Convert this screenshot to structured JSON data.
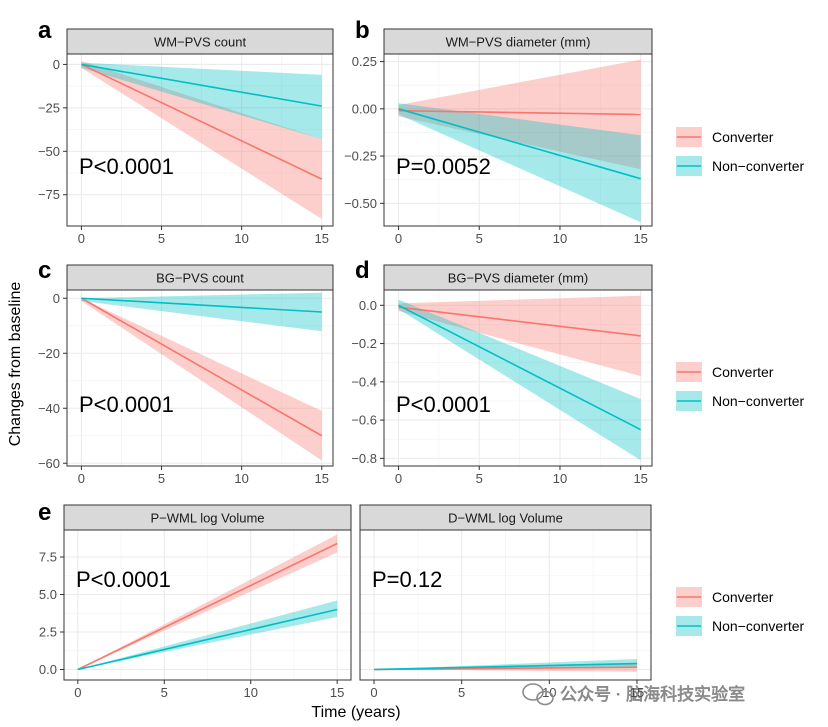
{
  "colors": {
    "converter": "#F8766D",
    "non_converter": "#00BFC4"
  },
  "xlabel": "Time (years)",
  "ylabel": "Changes from baseline",
  "legend": {
    "entries": [
      "Converter",
      "Non−converter"
    ],
    "placement": "right"
  },
  "watermark": "公众号 · 脑海科技实验室",
  "chart_data": [
    {
      "letter": "a",
      "type": "line",
      "title": "WM−PVS count",
      "p_value": "P<0.0001",
      "xlim": [
        -0.9,
        15.7
      ],
      "ylim": [
        -93,
        6
      ],
      "xticks": [
        0,
        5,
        10,
        15
      ],
      "xtick_labels": [
        "0",
        "5",
        "10",
        "15"
      ],
      "yticks": [
        0,
        -25,
        -50,
        -75
      ],
      "ytick_labels": [
        "0",
        "−25",
        "−50",
        "−75"
      ],
      "series": [
        {
          "name": "Converter",
          "x": [
            0,
            15
          ],
          "y": [
            0,
            -66
          ],
          "lower": [
            -2,
            -89
          ],
          "upper": [
            2,
            -43
          ]
        },
        {
          "name": "Non−converter",
          "x": [
            0,
            15
          ],
          "y": [
            0,
            -24
          ],
          "lower": [
            -2,
            -43
          ],
          "upper": [
            1,
            -6
          ]
        }
      ]
    },
    {
      "letter": "b",
      "type": "line",
      "title": "WM−PVS diameter (mm)",
      "p_value": "P=0.0052",
      "xlim": [
        -0.9,
        15.7
      ],
      "ylim": [
        -0.62,
        0.29
      ],
      "xticks": [
        0,
        5,
        10,
        15
      ],
      "xtick_labels": [
        "0",
        "5",
        "10",
        "15"
      ],
      "yticks": [
        0.25,
        0,
        -0.25,
        -0.5
      ],
      "ytick_labels": [
        "0.25",
        "0.00",
        "−0.25",
        "−0.50"
      ],
      "series": [
        {
          "name": "Converter",
          "x": [
            0,
            15
          ],
          "y": [
            -0.01,
            -0.03
          ],
          "lower": [
            -0.04,
            -0.32
          ],
          "upper": [
            0.02,
            0.26
          ]
        },
        {
          "name": "Non−converter",
          "x": [
            0,
            15
          ],
          "y": [
            0,
            -0.37
          ],
          "lower": [
            -0.03,
            -0.6
          ],
          "upper": [
            0.03,
            -0.14
          ]
        }
      ]
    },
    {
      "letter": "c",
      "type": "line",
      "title": "BG−PVS count",
      "p_value": "P<0.0001",
      "xlim": [
        -0.9,
        15.7
      ],
      "ylim": [
        -61,
        3
      ],
      "xticks": [
        0,
        5,
        10,
        15
      ],
      "xtick_labels": [
        "0",
        "5",
        "10",
        "15"
      ],
      "yticks": [
        0,
        -20,
        -40,
        -60
      ],
      "ytick_labels": [
        "0",
        "−20",
        "−40",
        "−60"
      ],
      "series": [
        {
          "name": "Converter",
          "x": [
            0,
            15
          ],
          "y": [
            0,
            -50
          ],
          "lower": [
            -1,
            -59
          ],
          "upper": [
            0,
            -41
          ]
        },
        {
          "name": "Non−converter",
          "x": [
            0,
            15
          ],
          "y": [
            0,
            -5
          ],
          "lower": [
            -1,
            -12
          ],
          "upper": [
            0,
            2
          ]
        }
      ]
    },
    {
      "letter": "d",
      "type": "line",
      "title": "BG−PVS diameter (mm)",
      "p_value": "P<0.0001",
      "xlim": [
        -0.9,
        15.7
      ],
      "ylim": [
        -0.84,
        0.08
      ],
      "xticks": [
        0,
        5,
        10,
        15
      ],
      "xtick_labels": [
        "0",
        "5",
        "10",
        "15"
      ],
      "yticks": [
        0,
        -0.2,
        -0.4,
        -0.6,
        -0.8
      ],
      "ytick_labels": [
        "0.0",
        "−0.2",
        "−0.4",
        "−0.6",
        "−0.8"
      ],
      "series": [
        {
          "name": "Converter",
          "x": [
            0,
            15
          ],
          "y": [
            -0.01,
            -0.16
          ],
          "lower": [
            -0.03,
            -0.37
          ],
          "upper": [
            0.01,
            0.05
          ]
        },
        {
          "name": "Non−converter",
          "x": [
            0,
            15
          ],
          "y": [
            0,
            -0.65
          ],
          "lower": [
            -0.02,
            -0.81
          ],
          "upper": [
            0.03,
            -0.49
          ]
        }
      ]
    },
    {
      "letter": "e",
      "type": "line",
      "title": "P−WML log Volume",
      "p_value": "P<0.0001",
      "xlim": [
        -0.8,
        15.8
      ],
      "ylim": [
        -0.7,
        9.3
      ],
      "xticks": [
        0,
        5,
        10,
        15
      ],
      "xtick_labels": [
        "0",
        "5",
        "10",
        "15"
      ],
      "yticks": [
        0,
        2.5,
        5,
        7.5
      ],
      "ytick_labels": [
        "0.0",
        "2.5",
        "5.0",
        "7.5"
      ],
      "series": [
        {
          "name": "Converter",
          "x": [
            0,
            15
          ],
          "y": [
            0,
            8.4
          ],
          "lower": [
            0,
            7.8
          ],
          "upper": [
            0,
            9
          ]
        },
        {
          "name": "Non−converter",
          "x": [
            0,
            15
          ],
          "y": [
            0,
            4
          ],
          "lower": [
            0,
            3.5
          ],
          "upper": [
            0,
            4.6
          ]
        }
      ]
    },
    {
      "letter": "",
      "type": "line",
      "title": "D−WML log Volume",
      "p_value": "P=0.12",
      "xlim": [
        -0.8,
        15.8
      ],
      "ylim": [
        -0.7,
        9.3
      ],
      "xticks": [
        0,
        5,
        10,
        15
      ],
      "xtick_labels": [
        "0",
        "5",
        "10",
        "15"
      ],
      "yticks": [],
      "ytick_labels": [],
      "series": [
        {
          "name": "Converter",
          "x": [
            0,
            15
          ],
          "y": [
            0,
            0.15
          ],
          "lower": [
            0,
            -0.15
          ],
          "upper": [
            0,
            0.45
          ]
        },
        {
          "name": "Non−converter",
          "x": [
            0,
            15
          ],
          "y": [
            0,
            0.4
          ],
          "lower": [
            0,
            0.1
          ],
          "upper": [
            0,
            0.7
          ]
        }
      ]
    }
  ]
}
